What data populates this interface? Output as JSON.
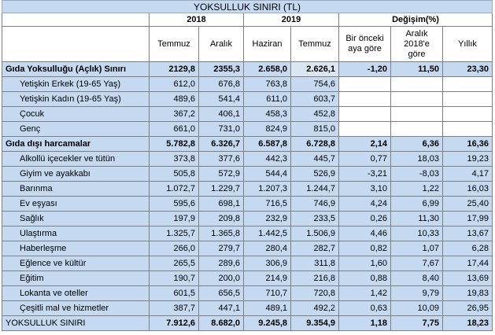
{
  "title": "YOKSULLUK SINIRI  (TL)",
  "years": {
    "y2018": "2018",
    "y2019": "2019",
    "change": "Değişim(%)"
  },
  "columns": {
    "c1": "Temmuz",
    "c2": "Aralık",
    "c3": "Haziran",
    "c4": "Temmuz",
    "c5": "Bir önceki aya göre",
    "c6": "Aralık 2018'e göre",
    "c7": "Yıllık"
  },
  "rows": [
    {
      "label": "Gıda Yoksulluğu (Açlık) Sınırı",
      "v": [
        "2129,8",
        "2355,3",
        "2.658,0",
        "2.626,1",
        "-1,20",
        "11,50",
        "23,30"
      ]
    },
    {
      "label": "Yetişkin Erkek (19-65 Yaş)",
      "v": [
        "612,0",
        "676,8",
        "763,8",
        "754,6",
        "",
        "",
        ""
      ]
    },
    {
      "label": "Yetişkin Kadın (19-65 Yaş)",
      "v": [
        "489,6",
        "541,4",
        "611,0",
        "603,7",
        "",
        "",
        ""
      ]
    },
    {
      "label": "Çocuk",
      "v": [
        "367,2",
        "406,1",
        "458,3",
        "452,8",
        "",
        "",
        ""
      ]
    },
    {
      "label": "Genç",
      "v": [
        "661,0",
        "731,0",
        "824,9",
        "815,0",
        "",
        "",
        ""
      ]
    },
    {
      "label": "Gıda dışı harcamalar",
      "v": [
        "5.782,8",
        "6.326,7",
        "6.587,8",
        "6.728,8",
        "2,14",
        "6,36",
        "16,36"
      ]
    },
    {
      "label": "Alkollü içecekler ve tütün",
      "v": [
        "373,8",
        "377,6",
        "442,3",
        "445,7",
        "0,77",
        "18,03",
        "19,23"
      ]
    },
    {
      "label": "Giyim ve ayakkabı",
      "v": [
        "505,8",
        "572,9",
        "544,4",
        "526,9",
        "-3,21",
        "-8,03",
        "4,17"
      ]
    },
    {
      "label": "Barınma",
      "v": [
        "1.072,7",
        "1.229,7",
        "1.207,3",
        "1.244,7",
        "3,10",
        "1,22",
        "16,03"
      ]
    },
    {
      "label": "Ev eşyası",
      "v": [
        "595,6",
        "698,1",
        "716,5",
        "746,9",
        "4,24",
        "6,99",
        "25,40"
      ]
    },
    {
      "label": "Sağlık",
      "v": [
        "197,9",
        "209,8",
        "232,9",
        "233,5",
        "0,26",
        "11,30",
        "17,99"
      ]
    },
    {
      "label": "Ulaştırma",
      "v": [
        "1.325,7",
        "1.365,8",
        "1.442,5",
        "1.506,9",
        "4,46",
        "10,33",
        "13,67"
      ]
    },
    {
      "label": "Haberleşme",
      "v": [
        "266,0",
        "279,7",
        "280,4",
        "282,7",
        "0,82",
        "1,07",
        "6,28"
      ]
    },
    {
      "label": "Eğlence ve kültür",
      "v": [
        "265,5",
        "289,6",
        "306,9",
        "311,8",
        "1,60",
        "7,67",
        "17,44"
      ]
    },
    {
      "label": "Eğitim",
      "v": [
        "190,7",
        "200,0",
        "214,9",
        "216,8",
        "0,88",
        "8,40",
        "13,69"
      ]
    },
    {
      "label": "Lokanta ve oteller",
      "v": [
        "601,5",
        "656,5",
        "710,7",
        "720,8",
        "1,42",
        "9,79",
        "19,83"
      ]
    },
    {
      "label": "Çeşitli mal ve hizmetler",
      "v": [
        "387,7",
        "447,1",
        "489,1",
        "492,2",
        "0,63",
        "10,09",
        "26,95"
      ]
    },
    {
      "label": "YOKSULLUK SINIRI",
      "v": [
        "7.912,6",
        "8.682,0",
        "9.245,8",
        "9.354,9",
        "1,18",
        "7,75",
        "18,23"
      ]
    }
  ]
}
